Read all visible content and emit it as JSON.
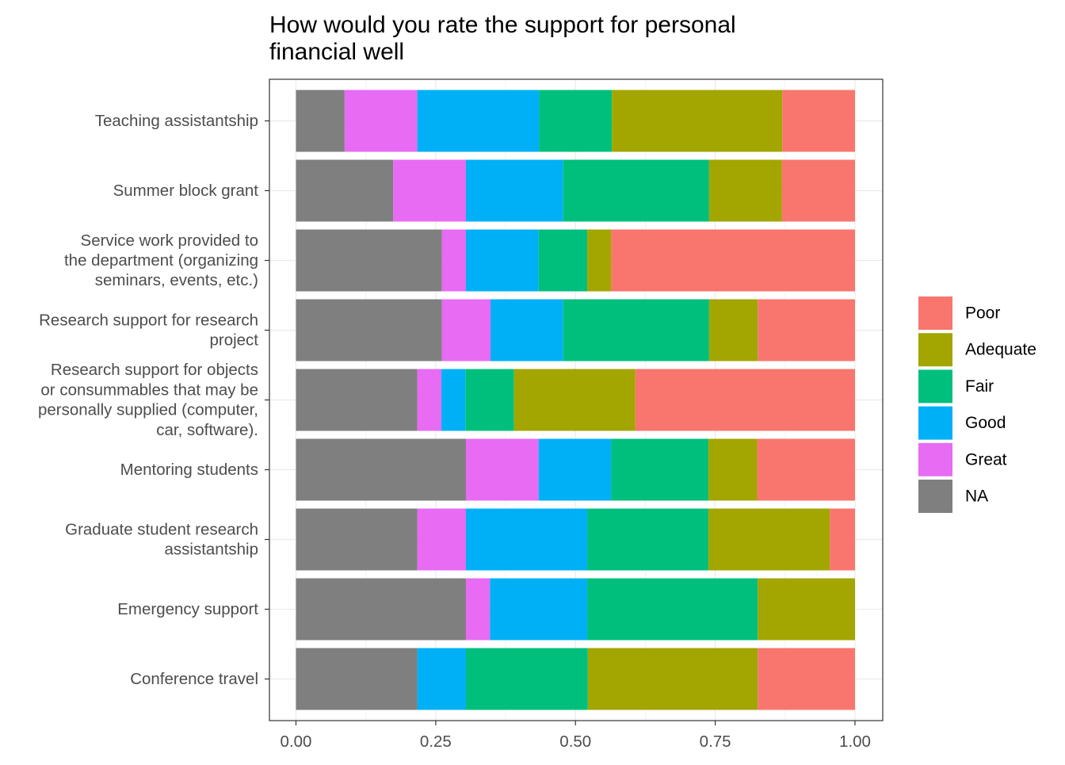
{
  "chart_data": {
    "type": "bar",
    "orientation": "horizontal",
    "stacked": true,
    "normalized": true,
    "title_lines": [
      "How would you rate the support for personal",
      "financial well"
    ],
    "xlabel": "",
    "ylabel": "",
    "xlim": [
      0,
      1
    ],
    "xticks": [
      "0.00",
      "0.25",
      "0.50",
      "0.75",
      "1.00"
    ],
    "grid": true,
    "legend_position": "right",
    "categories": [
      {
        "lines": [
          "Teaching assistantship"
        ]
      },
      {
        "lines": [
          "Summer block grant"
        ]
      },
      {
        "lines": [
          "Service work provided to",
          "the department (organizing",
          "seminars, events, etc.)"
        ]
      },
      {
        "lines": [
          "Research support for research",
          "project"
        ]
      },
      {
        "lines": [
          "Research support for objects",
          "or consummables that may be",
          "personally supplied (computer,",
          "car, software)."
        ]
      },
      {
        "lines": [
          "Mentoring students"
        ]
      },
      {
        "lines": [
          "Graduate student research",
          "assistantship"
        ]
      },
      {
        "lines": [
          "Emergency support"
        ]
      },
      {
        "lines": [
          "Conference travel"
        ]
      }
    ],
    "series": [
      {
        "name": "NA",
        "color": "#7f7f7f",
        "values": [
          0.087,
          0.174,
          0.261,
          0.261,
          0.217,
          0.304,
          0.217,
          0.304,
          0.217
        ]
      },
      {
        "name": "Great",
        "color": "#e76bf3",
        "values": [
          0.13,
          0.13,
          0.043,
          0.087,
          0.043,
          0.13,
          0.087,
          0.043,
          0.0
        ]
      },
      {
        "name": "Good",
        "color": "#00b0f6",
        "values": [
          0.218,
          0.174,
          0.13,
          0.13,
          0.043,
          0.13,
          0.217,
          0.174,
          0.087
        ]
      },
      {
        "name": "Fair",
        "color": "#00bf7d",
        "values": [
          0.13,
          0.261,
          0.087,
          0.261,
          0.087,
          0.174,
          0.217,
          0.305,
          0.218
        ]
      },
      {
        "name": "Adequate",
        "color": "#a3a500",
        "values": [
          0.305,
          0.13,
          0.043,
          0.087,
          0.217,
          0.087,
          0.217,
          0.174,
          0.304
        ]
      },
      {
        "name": "Poor",
        "color": "#f8766d",
        "values": [
          0.13,
          0.131,
          0.436,
          0.174,
          0.393,
          0.175,
          0.045,
          0.0,
          0.174
        ]
      }
    ],
    "legend_order": [
      "Poor",
      "Adequate",
      "Fair",
      "Good",
      "Great",
      "NA"
    ]
  }
}
